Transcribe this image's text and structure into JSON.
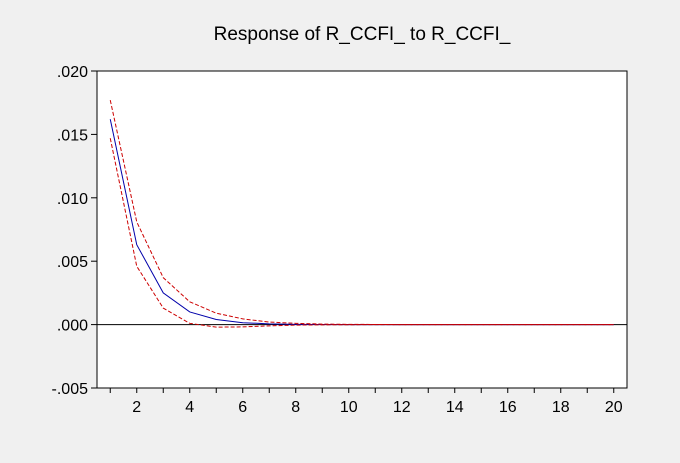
{
  "chart_data": {
    "type": "line",
    "title": "Response of R_CCFI_ to R_CCFI_",
    "xlabel": "",
    "ylabel": "",
    "xlim": [
      0.5,
      20.5
    ],
    "ylim": [
      -0.005,
      0.02
    ],
    "x_ticks": [
      2,
      4,
      6,
      8,
      10,
      12,
      14,
      16,
      18,
      20
    ],
    "y_ticks": [
      {
        "value": 0.02,
        "label": ".020"
      },
      {
        "value": 0.015,
        "label": ".015"
      },
      {
        "value": 0.01,
        "label": ".010"
      },
      {
        "value": 0.005,
        "label": ".005"
      },
      {
        "value": 0.0,
        "label": ".000"
      },
      {
        "value": -0.005,
        "label": "-.005"
      }
    ],
    "grid": false,
    "zero_line": true,
    "x": [
      1,
      2,
      3,
      4,
      5,
      6,
      7,
      8,
      9,
      10,
      11,
      12,
      13,
      14,
      15,
      16,
      17,
      18,
      19,
      20
    ],
    "series": [
      {
        "role": "response",
        "color": "#0000aa",
        "style": "solid",
        "values": [
          0.0162,
          0.0063,
          0.0025,
          0.001,
          0.0004,
          0.00015,
          6e-05,
          2e-05,
          1e-05,
          0,
          0,
          0,
          0,
          0,
          0,
          0,
          0,
          0,
          0,
          0
        ]
      },
      {
        "role": "upper",
        "color": "#cc0000",
        "style": "dashed",
        "values": [
          0.0177,
          0.0081,
          0.0037,
          0.0018,
          0.0009,
          0.00045,
          0.0002,
          0.0001,
          4e-05,
          2e-05,
          1e-05,
          0,
          0,
          0,
          0,
          0,
          0,
          0,
          0,
          0
        ]
      },
      {
        "role": "lower",
        "color": "#cc0000",
        "style": "dashed",
        "values": [
          0.0147,
          0.0046,
          0.0013,
          0.0001,
          -0.0002,
          -0.00018,
          -0.0001,
          -4e-05,
          -2e-05,
          -1e-05,
          0,
          0,
          0,
          0,
          0,
          0,
          0,
          0,
          0,
          0
        ]
      }
    ]
  }
}
